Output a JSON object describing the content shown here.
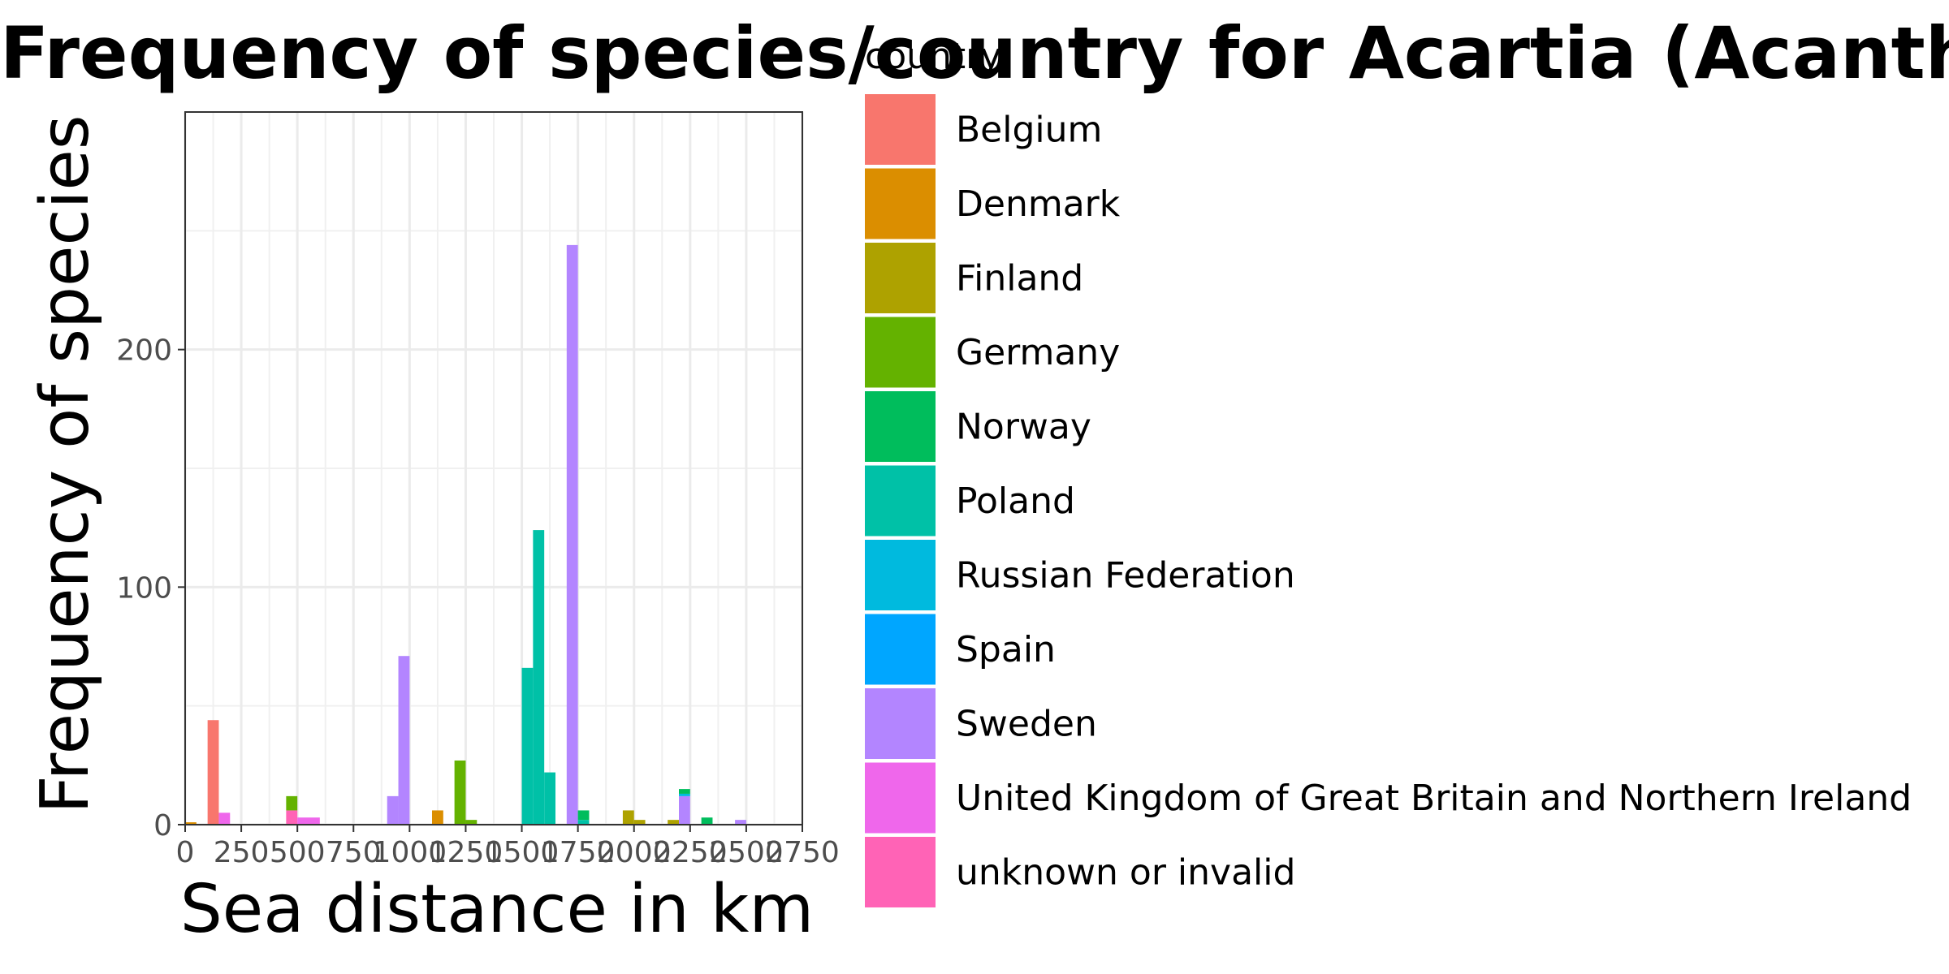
{
  "chart_data": {
    "type": "bar",
    "title": "Frequency of species/country for Acartia (Acanthacartia) tonsa in BelgiumCoast",
    "xlabel": "Sea distance in km",
    "ylabel": "Frequency of species",
    "xlim": [
      0,
      2750
    ],
    "ylim": [
      0,
      300
    ],
    "x_ticks": [
      0,
      250,
      500,
      750,
      1000,
      1250,
      1500,
      1750,
      2000,
      2250,
      2500,
      2750
    ],
    "x_tick_labels": [
      "0",
      "250",
      "500",
      "750",
      "1000",
      "1250",
      "1500",
      "1750",
      "2000",
      "2250",
      "2500",
      "2750"
    ],
    "y_ticks": [
      0,
      100,
      200
    ],
    "y_tick_labels": [
      "0",
      "100",
      "200"
    ],
    "bin_width": 50,
    "stacked": true,
    "grid": true,
    "legend": {
      "title": "country",
      "position": "right",
      "items": [
        {
          "name": "Belgium",
          "color": "#F8766D"
        },
        {
          "name": "Denmark",
          "color": "#DB8E00"
        },
        {
          "name": "Finland",
          "color": "#AEA200"
        },
        {
          "name": "Germany",
          "color": "#64B200"
        },
        {
          "name": "Norway",
          "color": "#00BD5C"
        },
        {
          "name": "Poland",
          "color": "#00C1A7"
        },
        {
          "name": "Russian Federation",
          "color": "#00BADE"
        },
        {
          "name": "Spain",
          "color": "#00A6FF"
        },
        {
          "name": "Sweden",
          "color": "#B385FF"
        },
        {
          "name": "United Kingdom of Great Britain and Northern Ireland",
          "color": "#EF67EB"
        },
        {
          "name": "unknown or invalid",
          "color": "#FF63B6"
        }
      ]
    },
    "bars": [
      {
        "x0": 0,
        "x1": 50,
        "segments": [
          {
            "country": "Denmark",
            "value": 1
          }
        ]
      },
      {
        "x0": 100,
        "x1": 150,
        "segments": [
          {
            "country": "Belgium",
            "value": 44
          }
        ]
      },
      {
        "x0": 150,
        "x1": 200,
        "segments": [
          {
            "country": "United Kingdom of Great Britain and Northern Ireland",
            "value": 5
          }
        ]
      },
      {
        "x0": 450,
        "x1": 500,
        "segments": [
          {
            "country": "unknown or invalid",
            "value": 6
          },
          {
            "country": "Germany",
            "value": 6
          }
        ]
      },
      {
        "x0": 500,
        "x1": 550,
        "segments": [
          {
            "country": "United Kingdom of Great Britain and Northern Ireland",
            "value": 3
          }
        ]
      },
      {
        "x0": 550,
        "x1": 600,
        "segments": [
          {
            "country": "United Kingdom of Great Britain and Northern Ireland",
            "value": 3
          }
        ]
      },
      {
        "x0": 900,
        "x1": 950,
        "segments": [
          {
            "country": "Sweden",
            "value": 12
          }
        ]
      },
      {
        "x0": 950,
        "x1": 1000,
        "segments": [
          {
            "country": "Sweden",
            "value": 71
          }
        ]
      },
      {
        "x0": 1100,
        "x1": 1150,
        "segments": [
          {
            "country": "Denmark",
            "value": 6
          }
        ]
      },
      {
        "x0": 1200,
        "x1": 1250,
        "segments": [
          {
            "country": "Germany",
            "value": 27
          }
        ]
      },
      {
        "x0": 1250,
        "x1": 1300,
        "segments": [
          {
            "country": "Germany",
            "value": 2
          }
        ]
      },
      {
        "x0": 1500,
        "x1": 1550,
        "segments": [
          {
            "country": "Poland",
            "value": 66
          }
        ]
      },
      {
        "x0": 1550,
        "x1": 1600,
        "segments": [
          {
            "country": "Poland",
            "value": 124
          }
        ]
      },
      {
        "x0": 1600,
        "x1": 1650,
        "segments": [
          {
            "country": "Poland",
            "value": 22
          }
        ]
      },
      {
        "x0": 1700,
        "x1": 1750,
        "segments": [
          {
            "country": "Sweden",
            "value": 244
          }
        ]
      },
      {
        "x0": 1750,
        "x1": 1800,
        "segments": [
          {
            "country": "Poland",
            "value": 2
          },
          {
            "country": "Norway",
            "value": 4
          }
        ]
      },
      {
        "x0": 1950,
        "x1": 2000,
        "segments": [
          {
            "country": "Finland",
            "value": 6
          }
        ]
      },
      {
        "x0": 2000,
        "x1": 2050,
        "segments": [
          {
            "country": "Finland",
            "value": 2
          }
        ]
      },
      {
        "x0": 2150,
        "x1": 2200,
        "segments": [
          {
            "country": "Finland",
            "value": 2
          }
        ]
      },
      {
        "x0": 2200,
        "x1": 2250,
        "segments": [
          {
            "country": "Sweden",
            "value": 12
          },
          {
            "country": "Russian Federation",
            "value": 1
          },
          {
            "country": "Norway",
            "value": 2
          }
        ]
      },
      {
        "x0": 2300,
        "x1": 2350,
        "segments": [
          {
            "country": "Norway",
            "value": 3
          }
        ]
      },
      {
        "x0": 2450,
        "x1": 2500,
        "segments": [
          {
            "country": "Sweden",
            "value": 2
          }
        ]
      }
    ]
  }
}
